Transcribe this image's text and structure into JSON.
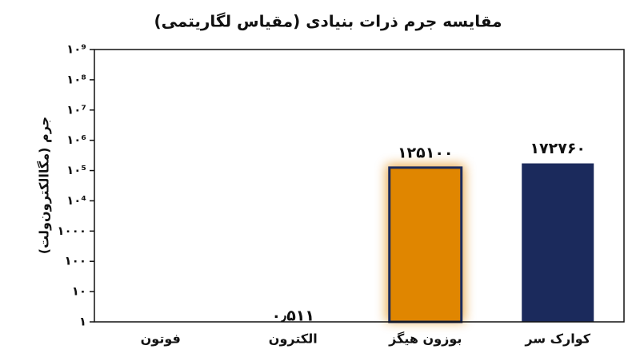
{
  "chart_data": {
    "type": "bar",
    "title": "مقایسه جرم ذرات بنیادی (مقیاس لگاریتمی)",
    "y_label": "جرم (مگاالکترون‌ولت)",
    "categories": [
      "فوتون",
      "الکترون",
      "بوزون هیگز",
      "کوارک سر"
    ],
    "values": [
      null,
      0.511,
      125100,
      172760
    ],
    "value_labels": [
      null,
      "۰٫۵۱۱",
      "۱۲۵۱۰۰",
      "۱۷۲۷۶۰"
    ],
    "colors": [
      "#1b2a5c",
      "#1b2a5c",
      "#e08600",
      "#1b2a5c"
    ],
    "highlight": 2,
    "log_scale": true,
    "ylim": [
      1,
      1000000000
    ],
    "yticks": [
      {
        "value": 1,
        "label": "۱"
      },
      {
        "value": 10,
        "label": "۱۰"
      },
      {
        "value": 100,
        "label": "۱۰۰"
      },
      {
        "value": 1000,
        "label": "۱۰۰۰"
      },
      {
        "value": 10000,
        "label": "۱۰⁴"
      },
      {
        "value": 100000,
        "label": "۱۰⁵"
      },
      {
        "value": 1000000,
        "label": "۱۰⁶"
      },
      {
        "value": 10000000,
        "label": "۱۰⁷"
      },
      {
        "value": 100000000,
        "label": "۱۰⁸"
      },
      {
        "value": 1000000000,
        "label": "۱۰⁹"
      }
    ]
  }
}
